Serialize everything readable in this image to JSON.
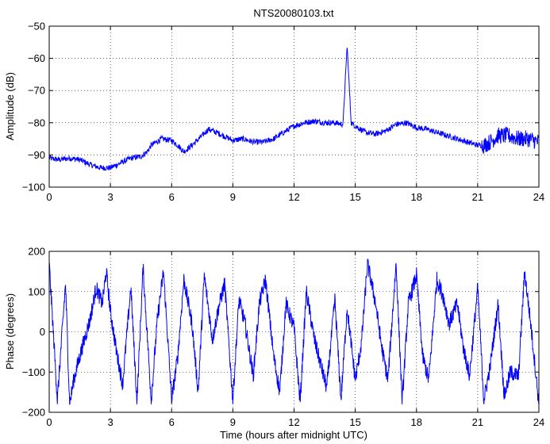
{
  "figure": {
    "title": "NTS20080103.txt"
  },
  "chart_data": [
    {
      "type": "line",
      "title": "NTS20080103.txt",
      "xlabel": "",
      "ylabel": "Amplitude (dB)",
      "xlim": [
        0,
        24
      ],
      "ylim": [
        -100,
        -50
      ],
      "xticks": [
        0,
        3,
        6,
        9,
        12,
        15,
        18,
        21,
        24
      ],
      "yticks": [
        -100,
        -90,
        -80,
        -70,
        -60,
        -50
      ],
      "xtick_labels": [
        "0",
        "3",
        "6",
        "9",
        "12",
        "15",
        "18",
        "21",
        "24"
      ],
      "ytick_labels": [
        "−100",
        "−90",
        "−80",
        "−70",
        "−60",
        "−50"
      ],
      "grid": true,
      "line_color": "#0000ff",
      "series": [
        {
          "x": [
            0,
            0.5,
            1,
            1.5,
            2,
            2.5,
            3,
            3.5,
            4,
            4.5,
            4.8,
            5,
            5.5,
            6,
            6.3,
            6.6,
            7,
            7.5,
            7.8,
            8.2,
            9,
            9.5,
            10,
            10.5,
            11,
            11.5,
            12,
            12.5,
            13,
            13.5,
            14,
            14.4,
            14.6,
            14.8,
            15,
            15.5,
            16,
            16.5,
            17,
            17.5,
            18,
            18.5,
            19,
            19.5,
            20,
            20.5,
            21,
            21.3,
            21.6,
            22,
            22.5,
            23,
            23.5,
            24
          ],
          "y": [
            -91,
            -91.5,
            -91,
            -91.5,
            -93,
            -94,
            -94,
            -92.5,
            -91,
            -90.5,
            -89,
            -87,
            -85,
            -85.5,
            -87,
            -89,
            -87,
            -84,
            -82,
            -83,
            -85.5,
            -85,
            -86,
            -86,
            -85,
            -83,
            -81,
            -80,
            -79.5,
            -80,
            -80,
            -80.5,
            -56,
            -80,
            -81,
            -83,
            -83.5,
            -82.5,
            -80.5,
            -80,
            -81.5,
            -82,
            -83,
            -84,
            -85,
            -86,
            -87,
            -87,
            -86,
            -84,
            -84,
            -85,
            -85,
            -86
          ]
        }
      ]
    },
    {
      "type": "line",
      "title": "",
      "xlabel": "Time (hours after midnight UTC)",
      "ylabel": "Phase (degrees)",
      "xlim": [
        0,
        24
      ],
      "ylim": [
        -200,
        200
      ],
      "xticks": [
        0,
        3,
        6,
        9,
        12,
        15,
        18,
        21,
        24
      ],
      "yticks": [
        -200,
        -100,
        0,
        100,
        200
      ],
      "xtick_labels": [
        "0",
        "3",
        "6",
        "9",
        "12",
        "15",
        "18",
        "21",
        "24"
      ],
      "ytick_labels": [
        "−200",
        "−100",
        "0",
        "100",
        "200"
      ],
      "grid": true,
      "line_color": "#0000ff",
      "series": [
        {
          "x": [
            0,
            0.4,
            0.8,
            1,
            1.2,
            1.5,
            2,
            2.3,
            2.6,
            2.8,
            3,
            3.3,
            3.6,
            4,
            4.3,
            4.6,
            5,
            5.3,
            5.6,
            6,
            6.3,
            6.6,
            7,
            7.3,
            7.6,
            8,
            8.3,
            8.6,
            9,
            9.3,
            9.6,
            10,
            10.3,
            10.6,
            11,
            11.3,
            11.6,
            12,
            12.3,
            12.6,
            13,
            13.3,
            13.6,
            14,
            14.3,
            14.6,
            15,
            15.3,
            15.6,
            16,
            16.3,
            16.6,
            17,
            17.3,
            17.6,
            18,
            18.3,
            18.6,
            19,
            19.3,
            19.6,
            20,
            20.3,
            20.6,
            21,
            21.3,
            21.6,
            22,
            22.3,
            22.6,
            23,
            23.3,
            23.6,
            24
          ],
          "y": [
            170,
            -170,
            120,
            -180,
            -120,
            -60,
            30,
            110,
            70,
            150,
            50,
            -50,
            -130,
            110,
            -175,
            160,
            -170,
            30,
            150,
            -170,
            -60,
            130,
            20,
            -150,
            140,
            -20,
            60,
            120,
            -170,
            80,
            20,
            -110,
            70,
            130,
            -60,
            -150,
            70,
            10,
            -175,
            100,
            -20,
            -80,
            -140,
            80,
            -170,
            60,
            -120,
            -30,
            170,
            70,
            -40,
            -120,
            170,
            -175,
            70,
            140,
            -60,
            -120,
            130,
            90,
            20,
            70,
            -40,
            -110,
            110,
            -170,
            -90,
            70,
            -160,
            -100,
            -110,
            150,
            20,
            -180
          ]
        }
      ]
    }
  ]
}
